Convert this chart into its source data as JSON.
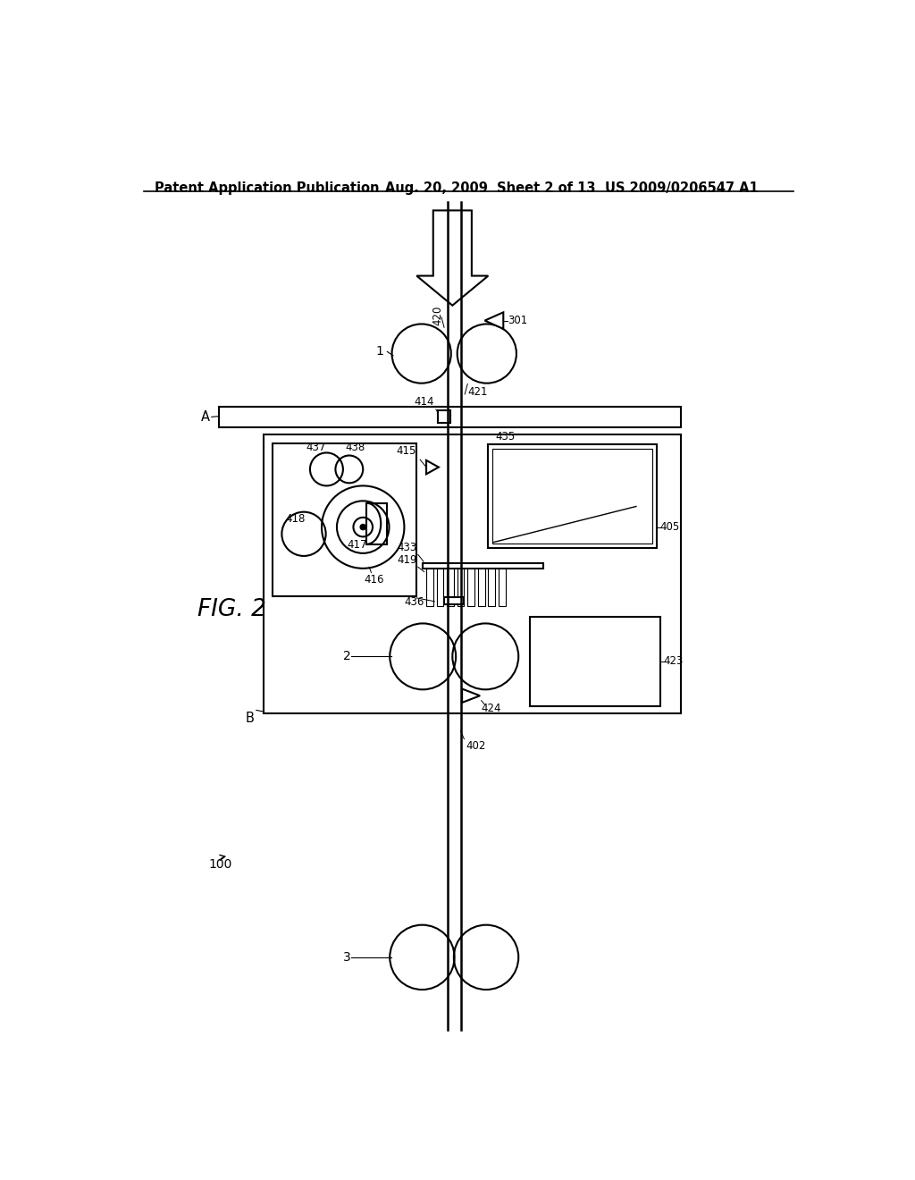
{
  "title_left": "Patent Application Publication",
  "title_mid": "Aug. 20, 2009  Sheet 2 of 13",
  "title_right": "US 2009/0206547 A1",
  "fig_label": "FIG. 2",
  "background": "#ffffff",
  "line_color": "#000000"
}
